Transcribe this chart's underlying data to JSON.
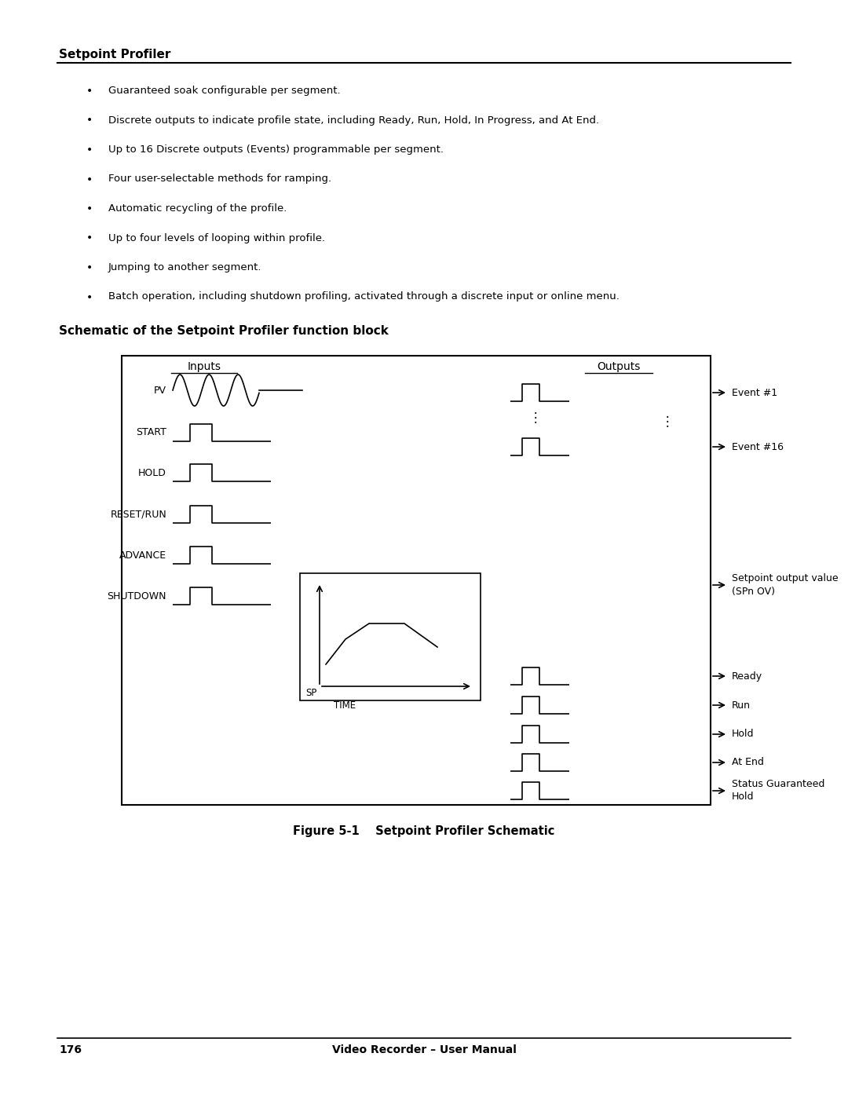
{
  "page_width": 10.8,
  "page_height": 13.97,
  "bg_color": "#ffffff",
  "section_title": "Setpoint Profiler",
  "bullet_points": [
    "Guaranteed soak configurable per segment.",
    "Discrete outputs to indicate profile state, including Ready, Run, Hold, In Progress, and At End.",
    "Up to 16 Discrete outputs (Events) programmable per segment.",
    "Four user-selectable methods for ramping.",
    "Automatic recycling of the profile.",
    "Up to four levels of looping within profile.",
    "Jumping to another segment.",
    "Batch operation, including shutdown profiling, activated through a discrete input or online menu."
  ],
  "schematic_title": "Schematic of the Setpoint Profiler function block",
  "figure_caption": "Figure 5-1    Setpoint Profiler Schematic",
  "footer_page": "176",
  "footer_text": "Video Recorder – User Manual",
  "inputs_label": "Inputs",
  "outputs_label": "Outputs",
  "input_labels": [
    "PV",
    "START",
    "HOLD",
    "RESET/RUN",
    "ADVANCE",
    "SHUTDOWN"
  ],
  "output_labels_top": [
    "Event #1",
    "Event #16"
  ],
  "output_labels_bottom": [
    "Ready",
    "Run",
    "Hold",
    "At End",
    "Status Guaranteed\nHold"
  ],
  "sp_label": "SP",
  "time_label": "TIME",
  "setpoint_output_label": "Setpoint output value\n(SPn OV)"
}
